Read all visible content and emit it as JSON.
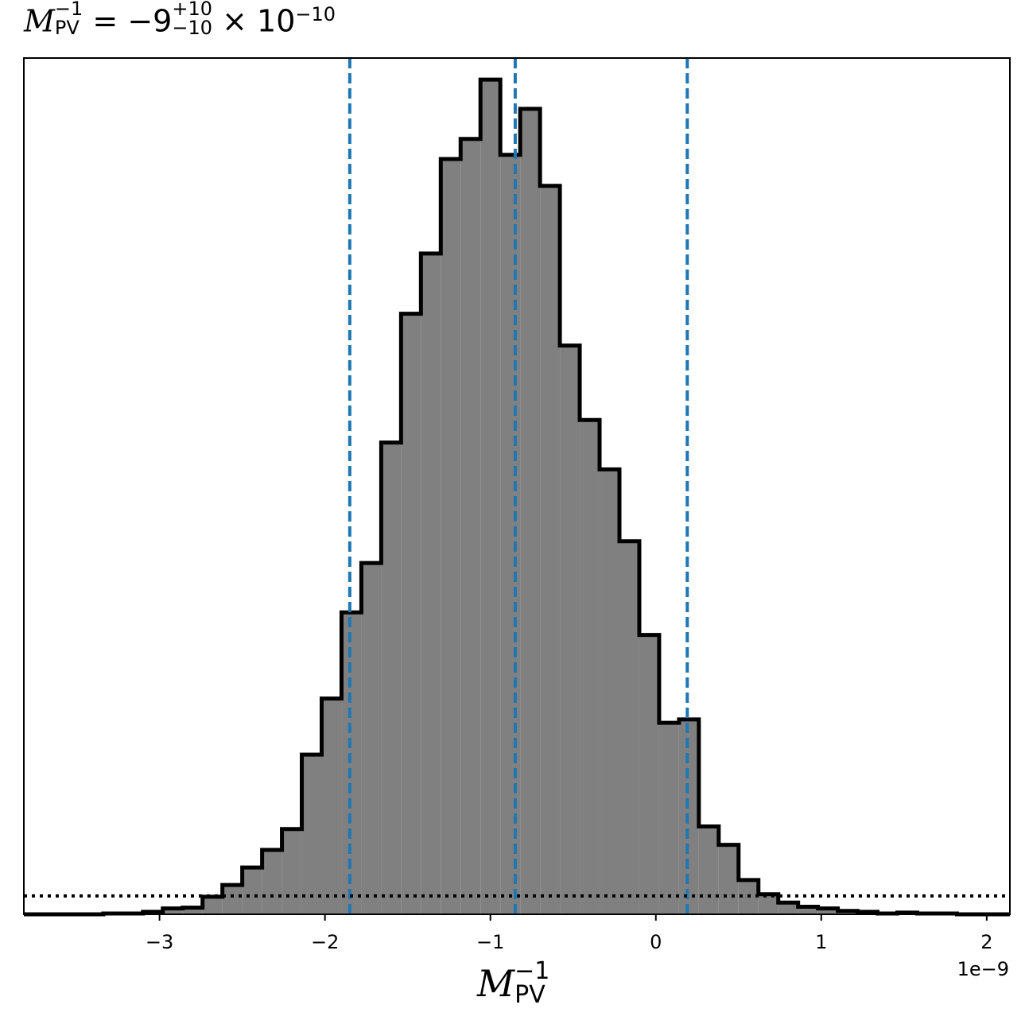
{
  "title": {
    "symbol": "M",
    "symbol_sub": "PV",
    "symbol_sup": "−1",
    "equals": "=",
    "value": "−9",
    "err_plus": "+10",
    "err_minus": "−10",
    "times": "× 10",
    "exponent": "−10"
  },
  "xlabel": {
    "symbol": "M",
    "sub": "PV",
    "sup": "−1"
  },
  "offset_text": "1e−9",
  "chart_data": {
    "type": "bar",
    "histtype": "step-filled",
    "fill_color": "#808080",
    "edge_color": "#000000",
    "vline_color": "#1f77b4",
    "x_unit_multiplier": 1e-09,
    "xlim": [
      -3.82,
      2.14
    ],
    "ylim": [
      0,
      1.0
    ],
    "x_ticks": [
      -3,
      -2,
      -1,
      0,
      1,
      2
    ],
    "x_tick_labels": [
      "−3",
      "−2",
      "−1",
      "0",
      "1",
      "2"
    ],
    "bin_edges": [
      -3.82,
      -3.7,
      -3.58,
      -3.46,
      -3.34,
      -3.22,
      -3.1,
      -2.98,
      -2.86,
      -2.74,
      -2.62,
      -2.5,
      -2.38,
      -2.26,
      -2.14,
      -2.02,
      -1.9,
      -1.78,
      -1.66,
      -1.54,
      -1.42,
      -1.3,
      -1.18,
      -1.06,
      -0.94,
      -0.82,
      -0.7,
      -0.58,
      -0.46,
      -0.34,
      -0.22,
      -0.1,
      0.02,
      0.14,
      0.26,
      0.38,
      0.5,
      0.62,
      0.74,
      0.86,
      0.98,
      1.1,
      1.22,
      1.34,
      1.46,
      1.58,
      1.7,
      1.82,
      1.94,
      2.06,
      2.14
    ],
    "counts": [
      0.0,
      0.0,
      0.0,
      0.0,
      0.001,
      0.001,
      0.003,
      0.007,
      0.008,
      0.021,
      0.035,
      0.056,
      0.077,
      0.102,
      0.191,
      0.258,
      0.361,
      0.42,
      0.564,
      0.718,
      0.79,
      0.903,
      0.927,
      0.998,
      0.908,
      0.963,
      0.871,
      0.68,
      0.591,
      0.532,
      0.446,
      0.334,
      0.229,
      0.233,
      0.105,
      0.083,
      0.041,
      0.024,
      0.014,
      0.009,
      0.007,
      0.004,
      0.003,
      0.001,
      0.002,
      0.001,
      0.001,
      0.0,
      0.0,
      0.0
    ],
    "vlines": [
      -1.85,
      -0.85,
      0.19
    ],
    "hline": 0.022
  }
}
